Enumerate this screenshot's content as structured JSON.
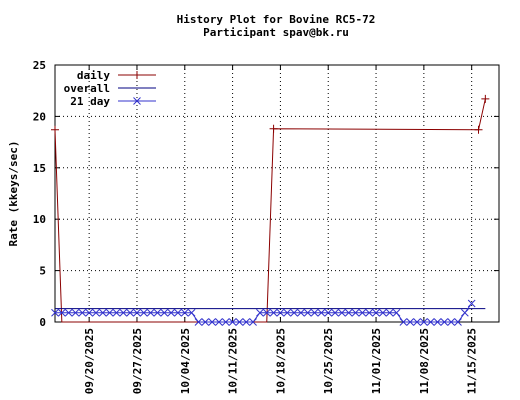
{
  "chart_data": {
    "type": "line",
    "title": "History Plot for Bovine RC5-72",
    "subtitle": "Participant spav@bk.ru",
    "ylabel": "Rate (kkeys/sec)",
    "xlabel": "",
    "ylim": [
      0,
      25
    ],
    "yticks": [
      0,
      5,
      10,
      15,
      20,
      25
    ],
    "xlim": [
      "2025-09-15",
      "2025-11-19"
    ],
    "xticks": [
      "09/20/2025",
      "09/27/2025",
      "10/04/2025",
      "10/11/2025",
      "10/18/2025",
      "10/25/2025",
      "11/01/2025",
      "11/08/2025",
      "11/15/2025"
    ],
    "grid": true,
    "legend_position": "top-left",
    "series": [
      {
        "name": "daily",
        "color": "#8b0000",
        "marker": "plus",
        "x": [
          "2025-09-15",
          "2025-09-16",
          "2025-10-16",
          "2025-10-17",
          "2025-11-16",
          "2025-11-17"
        ],
        "y": [
          18.7,
          0,
          0,
          18.8,
          18.7,
          21.7
        ]
      },
      {
        "name": "overall",
        "color": "#000080",
        "marker": "none",
        "x": [
          "2025-09-15",
          "2025-11-17"
        ],
        "y": [
          1.3,
          1.3
        ]
      },
      {
        "name": "21 day",
        "color": "#3333cc",
        "marker": "x",
        "x_start": "2025-09-15",
        "y": [
          0.9,
          0.9,
          0.9,
          0.9,
          0.9,
          0.9,
          0.9,
          0.9,
          0.9,
          0.9,
          0.9,
          0.9,
          0.9,
          0.9,
          0.9,
          0.9,
          0.9,
          0.9,
          0.9,
          0.9,
          0.9,
          0,
          0,
          0,
          0,
          0,
          0,
          0,
          0,
          0,
          0.9,
          0.9,
          0.9,
          0.9,
          0.9,
          0.9,
          0.9,
          0.9,
          0.9,
          0.9,
          0.9,
          0.9,
          0.9,
          0.9,
          0.9,
          0.9,
          0.9,
          0.9,
          0.9,
          0.9,
          0.9,
          0,
          0,
          0,
          0,
          0,
          0,
          0,
          0,
          0,
          0.9,
          1.8
        ]
      }
    ]
  }
}
